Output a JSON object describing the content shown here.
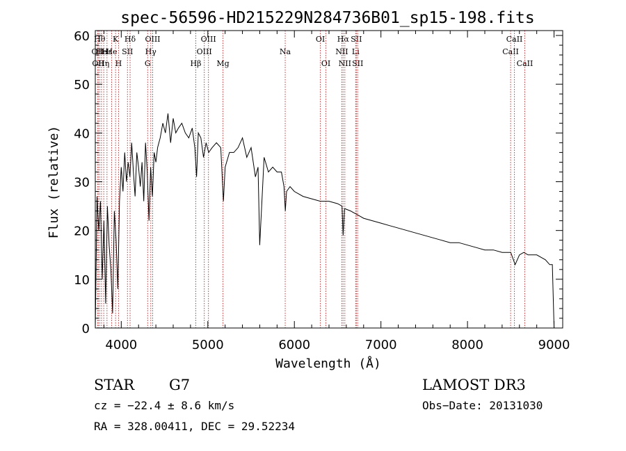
{
  "chart_data": {
    "type": "line",
    "title": "spec-56596-HD215229N284736B01_sp15-198.fits",
    "xlabel": "Wavelength (Å)",
    "ylabel": "Flux (relative)",
    "xlim": [
      3700,
      9100
    ],
    "ylim": [
      0,
      61
    ],
    "grid": false,
    "x_ticks": [
      4000,
      5000,
      6000,
      7000,
      8000,
      9000
    ],
    "x_tick_labels": [
      "4000",
      "5000",
      "6000",
      "7000",
      "8000",
      "9000"
    ],
    "y_ticks": [
      0,
      10,
      20,
      30,
      40,
      50,
      60
    ],
    "y_tick_labels": [
      "0",
      "10",
      "20",
      "30",
      "40",
      "50",
      "60"
    ],
    "line_color": "#000000",
    "marker_color": "#cc3333",
    "series": [
      {
        "x": [
          3700,
          3720,
          3740,
          3760,
          3780,
          3800,
          3820,
          3840,
          3860,
          3880,
          3900,
          3920,
          3940,
          3960,
          3980,
          4000,
          4020,
          4040,
          4060,
          4080,
          4100,
          4120,
          4140,
          4160,
          4180,
          4200,
          4220,
          4240,
          4260,
          4280,
          4300,
          4320,
          4340,
          4360,
          4380,
          4400,
          4420,
          4450,
          4480,
          4510,
          4540,
          4570,
          4600,
          4630,
          4660,
          4700,
          4740,
          4780,
          4820,
          4850,
          4870,
          4890,
          4920,
          4950,
          4980,
          5010,
          5050,
          5100,
          5150,
          5180,
          5200,
          5250,
          5300,
          5350,
          5400,
          5450,
          5500,
          5550,
          5580,
          5600,
          5650,
          5700,
          5750,
          5800,
          5850,
          5880,
          5895,
          5910,
          5950,
          6000,
          6100,
          6200,
          6300,
          6400,
          6500,
          6550,
          6563,
          6580,
          6650,
          6700,
          6750,
          6800,
          6900,
          7000,
          7100,
          7200,
          7300,
          7400,
          7500,
          7600,
          7700,
          7800,
          7900,
          8000,
          8100,
          8200,
          8300,
          8400,
          8500,
          8550,
          8600,
          8650,
          8700,
          8750,
          8800,
          8850,
          8900,
          8950,
          8980,
          9000
        ],
        "y": [
          0,
          27,
          20,
          26,
          10,
          22,
          5,
          25,
          17,
          12,
          3,
          24,
          18,
          8,
          26,
          33,
          28,
          36,
          30,
          34,
          31,
          38,
          32,
          27,
          36,
          33,
          29,
          34,
          26,
          38,
          32,
          22,
          33,
          27,
          36,
          34,
          37,
          39,
          42,
          40,
          44,
          38,
          43,
          40,
          41,
          42,
          40,
          39,
          41,
          37,
          31,
          40,
          39,
          35,
          38,
          36,
          37,
          38,
          37,
          26,
          33,
          36,
          36,
          37,
          39,
          35,
          37,
          31,
          33,
          17,
          35,
          32,
          33,
          32,
          32,
          29,
          24,
          28,
          29,
          28,
          27,
          26.5,
          26,
          26,
          25.5,
          25,
          19,
          24.5,
          24,
          23.5,
          23,
          22.5,
          22,
          21.5,
          21,
          20.5,
          20,
          19.5,
          19,
          18.5,
          18,
          17.5,
          17.5,
          17,
          16.5,
          16,
          16,
          15.5,
          15.5,
          13,
          15,
          15.5,
          15,
          15,
          15,
          14.5,
          14,
          13,
          13,
          0
        ]
      }
    ],
    "line_markers": [
      {
        "x": 3727,
        "label": "OII",
        "row": 1
      },
      {
        "x": 3734,
        "label": "OII",
        "row": 2
      },
      {
        "x": 3750,
        "label": "Hθ",
        "row": 0
      },
      {
        "x": 3771,
        "label": "He",
        "row": 1
      },
      {
        "x": 3798,
        "label": "Hη",
        "row": 2
      },
      {
        "x": 3835,
        "label": "Hε",
        "row": 1
      },
      {
        "x": 3889,
        "label": "He",
        "row": 1
      },
      {
        "x": 3934,
        "label": "K",
        "row": 0
      },
      {
        "x": 3969,
        "label": "H",
        "row": 2
      },
      {
        "x": 4072,
        "label": "SII",
        "row": 1
      },
      {
        "x": 4102,
        "label": "Hδ",
        "row": 0
      },
      {
        "x": 4305,
        "label": "G",
        "row": 2
      },
      {
        "x": 4341,
        "label": "Hγ",
        "row": 1
      },
      {
        "x": 4363,
        "label": "OIII",
        "row": 0
      },
      {
        "x": 4861,
        "label": "Hβ",
        "row": 2
      },
      {
        "x": 4959,
        "label": "OIII",
        "row": 1
      },
      {
        "x": 5007,
        "label": "OIII",
        "row": 0
      },
      {
        "x": 5175,
        "label": "Mg",
        "row": 2
      },
      {
        "x": 5894,
        "label": "Na",
        "row": 1
      },
      {
        "x": 6300,
        "label": "OI",
        "row": 0
      },
      {
        "x": 6364,
        "label": "OI",
        "row": 2
      },
      {
        "x": 6548,
        "label": "NII",
        "row": 1
      },
      {
        "x": 6563,
        "label": "Hα",
        "row": 0
      },
      {
        "x": 6583,
        "label": "NII",
        "row": 2
      },
      {
        "x": 6708,
        "label": "Li",
        "row": 1
      },
      {
        "x": 6716,
        "label": "SII",
        "row": 0
      },
      {
        "x": 6731,
        "label": "SII",
        "row": 2
      },
      {
        "x": 8498,
        "label": "CaII",
        "row": 1
      },
      {
        "x": 8542,
        "label": "CaII",
        "row": 0
      },
      {
        "x": 8662,
        "label": "CaII",
        "row": 2
      }
    ]
  },
  "info": {
    "object_class": "STAR",
    "subclass": "G7",
    "survey": "LAMOST DR3",
    "redshift_line": "cz = −22.4 ± 8.6 km/s",
    "obs_date_line": "Obs−Date: 20131030",
    "coords_line": "RA = 328.00411, DEC =  29.52234"
  }
}
